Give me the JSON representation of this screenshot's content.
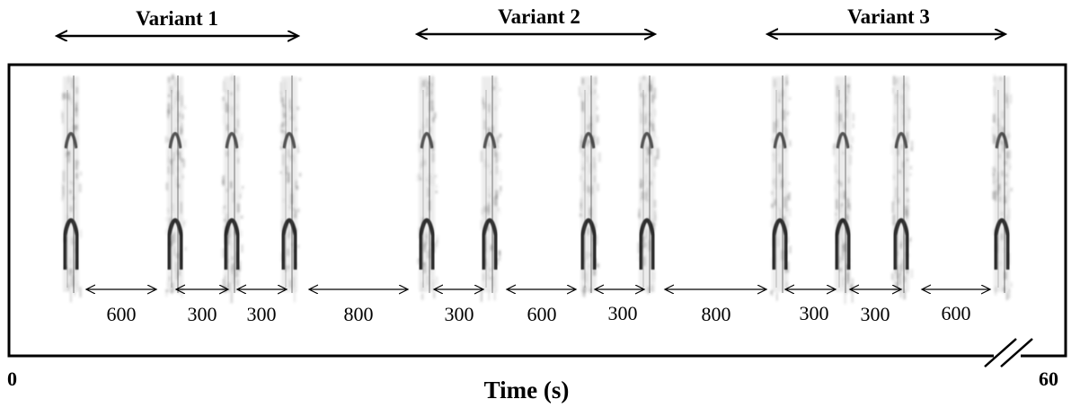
{
  "variants": [
    {
      "label": "Variant 1"
    },
    {
      "label": "Variant 2"
    },
    {
      "label": "Variant 3"
    }
  ],
  "intervals": [
    {
      "label": "600"
    },
    {
      "label": "300"
    },
    {
      "label": "300"
    },
    {
      "label": "800"
    },
    {
      "label": "300"
    },
    {
      "label": "600"
    },
    {
      "label": "300"
    },
    {
      "label": "800"
    },
    {
      "label": "300"
    },
    {
      "label": "300"
    },
    {
      "label": "600"
    }
  ],
  "axis": {
    "start_label": "0",
    "end_label": "60",
    "title": "Time (s)"
  },
  "syllable_count": 12
}
